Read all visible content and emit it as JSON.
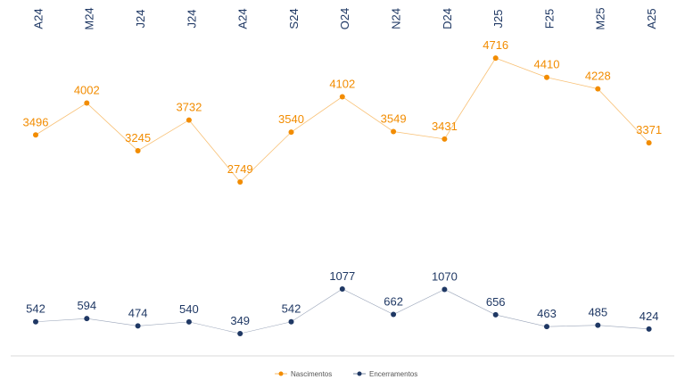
{
  "chart_data": {
    "type": "line",
    "categories": [
      "A24",
      "M24",
      "J24",
      "J24",
      "A24",
      "S24",
      "O24",
      "N24",
      "D24",
      "J25",
      "F25",
      "M25",
      "A25"
    ],
    "series": [
      {
        "name": "Nascimentos",
        "color": "#f28c00",
        "values": [
          3496,
          4002,
          3245,
          3732,
          2749,
          3540,
          4102,
          3549,
          3431,
          4716,
          4410,
          4228,
          3371
        ]
      },
      {
        "name": "Encerramentos",
        "color": "#1f3864",
        "values": [
          542,
          594,
          474,
          540,
          349,
          542,
          1077,
          662,
          1070,
          656,
          463,
          485,
          424
        ]
      }
    ],
    "legend_position": "bottom-center",
    "grid": false
  }
}
